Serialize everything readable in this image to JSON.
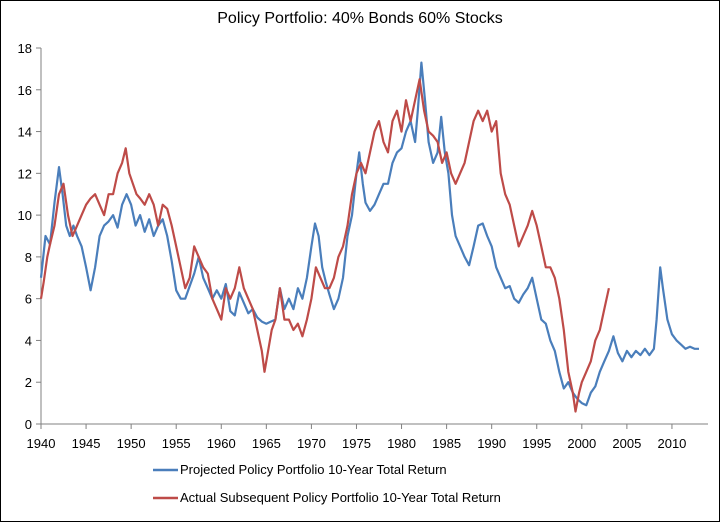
{
  "chart_data": {
    "type": "line",
    "title": "Policy Portfolio: 40% Bonds 60% Stocks",
    "xlim": [
      1940,
      2014
    ],
    "ylim": [
      0,
      18
    ],
    "x_ticks": [
      1940,
      1945,
      1950,
      1955,
      1960,
      1965,
      1970,
      1975,
      1980,
      1985,
      1990,
      1995,
      2000,
      2005,
      2010
    ],
    "y_ticks": [
      0,
      2,
      4,
      6,
      8,
      10,
      12,
      14,
      16,
      18
    ],
    "grid": false,
    "legend_position": "bottom",
    "series": [
      {
        "name": "Projected Policy Portfolio 10-Year Total Return",
        "color": "#4a7ebb",
        "points": [
          [
            1940.0,
            7.0
          ],
          [
            1940.5,
            9.0
          ],
          [
            1941.0,
            8.6
          ],
          [
            1941.5,
            10.6
          ],
          [
            1942.0,
            12.3
          ],
          [
            1942.4,
            11.0
          ],
          [
            1942.8,
            9.5
          ],
          [
            1943.2,
            9.0
          ],
          [
            1943.6,
            9.5
          ],
          [
            1944.0,
            9.0
          ],
          [
            1944.5,
            8.5
          ],
          [
            1945.0,
            7.5
          ],
          [
            1945.5,
            6.4
          ],
          [
            1946.0,
            7.5
          ],
          [
            1946.5,
            9.0
          ],
          [
            1947.0,
            9.5
          ],
          [
            1947.5,
            9.7
          ],
          [
            1948.0,
            10.0
          ],
          [
            1948.5,
            9.4
          ],
          [
            1949.0,
            10.5
          ],
          [
            1949.5,
            11.0
          ],
          [
            1950.0,
            10.5
          ],
          [
            1950.5,
            9.5
          ],
          [
            1951.0,
            10.0
          ],
          [
            1951.5,
            9.2
          ],
          [
            1952.0,
            9.8
          ],
          [
            1952.5,
            9.0
          ],
          [
            1953.0,
            9.5
          ],
          [
            1953.5,
            9.8
          ],
          [
            1954.0,
            9.0
          ],
          [
            1954.5,
            7.8
          ],
          [
            1955.0,
            6.4
          ],
          [
            1955.5,
            6.0
          ],
          [
            1956.0,
            6.0
          ],
          [
            1956.5,
            6.6
          ],
          [
            1957.0,
            7.2
          ],
          [
            1957.5,
            8.0
          ],
          [
            1958.0,
            7.0
          ],
          [
            1958.5,
            6.5
          ],
          [
            1959.0,
            6.0
          ],
          [
            1959.5,
            6.4
          ],
          [
            1960.0,
            6.0
          ],
          [
            1960.5,
            6.7
          ],
          [
            1961.0,
            5.4
          ],
          [
            1961.5,
            5.2
          ],
          [
            1962.0,
            6.3
          ],
          [
            1962.5,
            5.8
          ],
          [
            1963.0,
            5.3
          ],
          [
            1963.5,
            5.5
          ],
          [
            1964.0,
            5.1
          ],
          [
            1964.5,
            4.9
          ],
          [
            1965.0,
            4.8
          ],
          [
            1965.5,
            4.9
          ],
          [
            1966.0,
            5.0
          ],
          [
            1966.5,
            6.5
          ],
          [
            1967.0,
            5.5
          ],
          [
            1967.5,
            6.0
          ],
          [
            1968.0,
            5.5
          ],
          [
            1968.5,
            6.5
          ],
          [
            1969.0,
            6.0
          ],
          [
            1969.5,
            7.0
          ],
          [
            1970.0,
            8.5
          ],
          [
            1970.4,
            9.6
          ],
          [
            1970.8,
            9.0
          ],
          [
            1971.2,
            7.5
          ],
          [
            1971.6,
            6.8
          ],
          [
            1972.0,
            6.2
          ],
          [
            1972.5,
            5.5
          ],
          [
            1973.0,
            6.0
          ],
          [
            1973.5,
            7.0
          ],
          [
            1974.0,
            9.0
          ],
          [
            1974.5,
            10.0
          ],
          [
            1975.0,
            12.0
          ],
          [
            1975.3,
            13.0
          ],
          [
            1975.7,
            11.5
          ],
          [
            1976.0,
            10.6
          ],
          [
            1976.5,
            10.2
          ],
          [
            1977.0,
            10.5
          ],
          [
            1977.5,
            11.0
          ],
          [
            1978.0,
            11.5
          ],
          [
            1978.5,
            11.5
          ],
          [
            1979.0,
            12.5
          ],
          [
            1979.5,
            13.0
          ],
          [
            1980.0,
            13.2
          ],
          [
            1980.5,
            14.0
          ],
          [
            1981.0,
            14.5
          ],
          [
            1981.5,
            13.5
          ],
          [
            1981.8,
            15.0
          ],
          [
            1982.2,
            17.3
          ],
          [
            1982.6,
            15.5
          ],
          [
            1983.0,
            13.5
          ],
          [
            1983.5,
            12.5
          ],
          [
            1984.0,
            13.0
          ],
          [
            1984.4,
            14.7
          ],
          [
            1984.8,
            13.0
          ],
          [
            1985.2,
            12.0
          ],
          [
            1985.6,
            10.0
          ],
          [
            1986.0,
            9.0
          ],
          [
            1986.5,
            8.5
          ],
          [
            1987.0,
            8.0
          ],
          [
            1987.5,
            7.6
          ],
          [
            1988.0,
            8.5
          ],
          [
            1988.5,
            9.5
          ],
          [
            1989.0,
            9.6
          ],
          [
            1989.5,
            9.0
          ],
          [
            1990.0,
            8.5
          ],
          [
            1990.5,
            7.5
          ],
          [
            1991.0,
            7.0
          ],
          [
            1991.5,
            6.5
          ],
          [
            1992.0,
            6.6
          ],
          [
            1992.5,
            6.0
          ],
          [
            1993.0,
            5.8
          ],
          [
            1993.5,
            6.2
          ],
          [
            1994.0,
            6.5
          ],
          [
            1994.5,
            7.0
          ],
          [
            1995.0,
            6.0
          ],
          [
            1995.5,
            5.0
          ],
          [
            1996.0,
            4.8
          ],
          [
            1996.5,
            4.0
          ],
          [
            1997.0,
            3.5
          ],
          [
            1997.5,
            2.5
          ],
          [
            1998.0,
            1.7
          ],
          [
            1998.5,
            2.0
          ],
          [
            1999.0,
            1.5
          ],
          [
            1999.5,
            1.2
          ],
          [
            2000.0,
            1.0
          ],
          [
            2000.5,
            0.9
          ],
          [
            2001.0,
            1.5
          ],
          [
            2001.5,
            1.8
          ],
          [
            2002.0,
            2.5
          ],
          [
            2002.5,
            3.0
          ],
          [
            2003.0,
            3.5
          ],
          [
            2003.5,
            4.2
          ],
          [
            2004.0,
            3.4
          ],
          [
            2004.5,
            3.0
          ],
          [
            2005.0,
            3.5
          ],
          [
            2005.5,
            3.2
          ],
          [
            2006.0,
            3.5
          ],
          [
            2006.5,
            3.3
          ],
          [
            2007.0,
            3.6
          ],
          [
            2007.5,
            3.3
          ],
          [
            2008.0,
            3.6
          ],
          [
            2008.3,
            5.0
          ],
          [
            2008.7,
            7.5
          ],
          [
            2009.0,
            6.5
          ],
          [
            2009.5,
            5.0
          ],
          [
            2010.0,
            4.3
          ],
          [
            2010.5,
            4.0
          ],
          [
            2011.0,
            3.8
          ],
          [
            2011.5,
            3.6
          ],
          [
            2012.0,
            3.7
          ],
          [
            2012.5,
            3.6
          ],
          [
            2013.0,
            3.6
          ]
        ]
      },
      {
        "name": "Actual Subsequent Policy Portfolio 10-Year Total Return",
        "color": "#be4b48",
        "points": [
          [
            1940.0,
            6.0
          ],
          [
            1940.3,
            6.8
          ],
          [
            1940.7,
            8.0
          ],
          [
            1941.0,
            8.6
          ],
          [
            1941.5,
            9.5
          ],
          [
            1942.0,
            11.0
          ],
          [
            1942.5,
            11.5
          ],
          [
            1943.0,
            10.0
          ],
          [
            1943.5,
            9.0
          ],
          [
            1944.0,
            9.5
          ],
          [
            1944.5,
            10.0
          ],
          [
            1945.0,
            10.5
          ],
          [
            1945.5,
            10.8
          ],
          [
            1946.0,
            11.0
          ],
          [
            1946.5,
            10.5
          ],
          [
            1947.0,
            10.0
          ],
          [
            1947.5,
            11.0
          ],
          [
            1948.0,
            11.0
          ],
          [
            1948.5,
            12.0
          ],
          [
            1949.0,
            12.5
          ],
          [
            1949.4,
            13.2
          ],
          [
            1949.8,
            12.0
          ],
          [
            1950.2,
            11.5
          ],
          [
            1950.6,
            11.0
          ],
          [
            1951.0,
            10.8
          ],
          [
            1951.5,
            10.5
          ],
          [
            1952.0,
            11.0
          ],
          [
            1952.5,
            10.5
          ],
          [
            1953.0,
            9.5
          ],
          [
            1953.5,
            10.5
          ],
          [
            1954.0,
            10.3
          ],
          [
            1954.5,
            9.5
          ],
          [
            1955.0,
            8.5
          ],
          [
            1955.5,
            7.5
          ],
          [
            1956.0,
            6.5
          ],
          [
            1956.5,
            7.0
          ],
          [
            1957.0,
            8.5
          ],
          [
            1957.5,
            8.0
          ],
          [
            1958.0,
            7.5
          ],
          [
            1958.5,
            7.2
          ],
          [
            1959.0,
            6.0
          ],
          [
            1959.5,
            5.5
          ],
          [
            1960.0,
            5.0
          ],
          [
            1960.5,
            6.5
          ],
          [
            1961.0,
            6.0
          ],
          [
            1961.5,
            6.5
          ],
          [
            1962.0,
            7.5
          ],
          [
            1962.5,
            6.5
          ],
          [
            1963.0,
            6.0
          ],
          [
            1963.5,
            5.5
          ],
          [
            1964.0,
            4.5
          ],
          [
            1964.5,
            3.5
          ],
          [
            1964.8,
            2.5
          ],
          [
            1965.2,
            3.5
          ],
          [
            1965.6,
            4.5
          ],
          [
            1966.0,
            5.0
          ],
          [
            1966.5,
            6.5
          ],
          [
            1967.0,
            5.0
          ],
          [
            1967.5,
            5.0
          ],
          [
            1968.0,
            4.5
          ],
          [
            1968.5,
            4.8
          ],
          [
            1969.0,
            4.2
          ],
          [
            1969.5,
            5.0
          ],
          [
            1970.0,
            6.0
          ],
          [
            1970.5,
            7.5
          ],
          [
            1971.0,
            7.0
          ],
          [
            1971.5,
            6.5
          ],
          [
            1972.0,
            6.5
          ],
          [
            1972.5,
            7.0
          ],
          [
            1973.0,
            8.0
          ],
          [
            1973.5,
            8.5
          ],
          [
            1974.0,
            9.5
          ],
          [
            1974.5,
            11.0
          ],
          [
            1975.0,
            12.0
          ],
          [
            1975.5,
            12.5
          ],
          [
            1976.0,
            12.0
          ],
          [
            1976.5,
            13.0
          ],
          [
            1977.0,
            14.0
          ],
          [
            1977.5,
            14.5
          ],
          [
            1978.0,
            13.5
          ],
          [
            1978.5,
            13.0
          ],
          [
            1979.0,
            14.5
          ],
          [
            1979.5,
            15.0
          ],
          [
            1980.0,
            14.0
          ],
          [
            1980.5,
            15.5
          ],
          [
            1981.0,
            14.5
          ],
          [
            1981.5,
            15.5
          ],
          [
            1982.0,
            16.5
          ],
          [
            1982.5,
            15.0
          ],
          [
            1983.0,
            14.0
          ],
          [
            1983.5,
            13.8
          ],
          [
            1984.0,
            13.5
          ],
          [
            1984.5,
            12.5
          ],
          [
            1985.0,
            13.0
          ],
          [
            1985.5,
            12.0
          ],
          [
            1986.0,
            11.5
          ],
          [
            1986.5,
            12.0
          ],
          [
            1987.0,
            12.5
          ],
          [
            1987.5,
            13.5
          ],
          [
            1988.0,
            14.5
          ],
          [
            1988.5,
            15.0
          ],
          [
            1989.0,
            14.5
          ],
          [
            1989.5,
            15.0
          ],
          [
            1990.0,
            14.0
          ],
          [
            1990.5,
            14.5
          ],
          [
            1991.0,
            12.0
          ],
          [
            1991.5,
            11.0
          ],
          [
            1992.0,
            10.5
          ],
          [
            1992.5,
            9.5
          ],
          [
            1993.0,
            8.5
          ],
          [
            1993.5,
            9.0
          ],
          [
            1994.0,
            9.5
          ],
          [
            1994.5,
            10.2
          ],
          [
            1995.0,
            9.5
          ],
          [
            1995.5,
            8.5
          ],
          [
            1996.0,
            7.5
          ],
          [
            1996.5,
            7.5
          ],
          [
            1997.0,
            7.0
          ],
          [
            1997.5,
            6.0
          ],
          [
            1998.0,
            4.5
          ],
          [
            1998.5,
            2.5
          ],
          [
            1999.0,
            1.5
          ],
          [
            1999.3,
            0.6
          ],
          [
            1999.7,
            1.5
          ],
          [
            2000.0,
            2.0
          ],
          [
            2000.5,
            2.5
          ],
          [
            2001.0,
            3.0
          ],
          [
            2001.5,
            4.0
          ],
          [
            2002.0,
            4.5
          ],
          [
            2002.5,
            5.5
          ],
          [
            2003.0,
            6.5
          ]
        ]
      }
    ]
  }
}
